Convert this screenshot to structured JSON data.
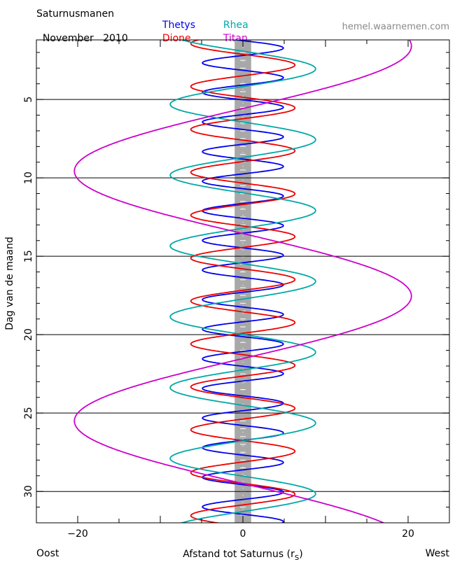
{
  "header": {
    "title": "Saturnusmanen",
    "month": "November",
    "year": "2010",
    "website": "hemel.waarnemen.com"
  },
  "footer": {
    "left_label": "Oost",
    "right_label": "West"
  },
  "colors": {
    "Thetys": "#0000ee",
    "Dione": "#ee0000",
    "Rhea": "#00a8a8",
    "Titan": "#cc00cc",
    "saturn_band": "#a8a8a8"
  },
  "chart_data": {
    "type": "line",
    "xlabel": "Afstand tot Saturnus (r",
    "xlabel_sub": "S",
    "xlabel_close": ")",
    "ylabel": "Dag van de maand",
    "xlim": [
      -25,
      25
    ],
    "ylim": [
      32,
      1.2
    ],
    "x_ticks": [
      -20,
      0,
      20
    ],
    "y_ticks": [
      5,
      10,
      15,
      20,
      25,
      30
    ],
    "grid_lines_y": [
      5,
      10,
      15,
      20,
      25,
      30
    ],
    "saturn_band_halfwidth": 1,
    "series": [
      {
        "name": "Thetys",
        "amplitude": 4.9,
        "period_days": 1.8878,
        "phase_day": 1.25
      },
      {
        "name": "Dione",
        "amplitude": 6.3,
        "period_days": 2.7369,
        "phase_day": 2.12
      },
      {
        "name": "Rhea",
        "amplitude": 8.8,
        "period_days": 4.5175,
        "phase_day": 1.92
      },
      {
        "name": "Titan",
        "amplitude": 20.4,
        "period_days": 15.945,
        "phase_day": 13.55
      }
    ]
  }
}
